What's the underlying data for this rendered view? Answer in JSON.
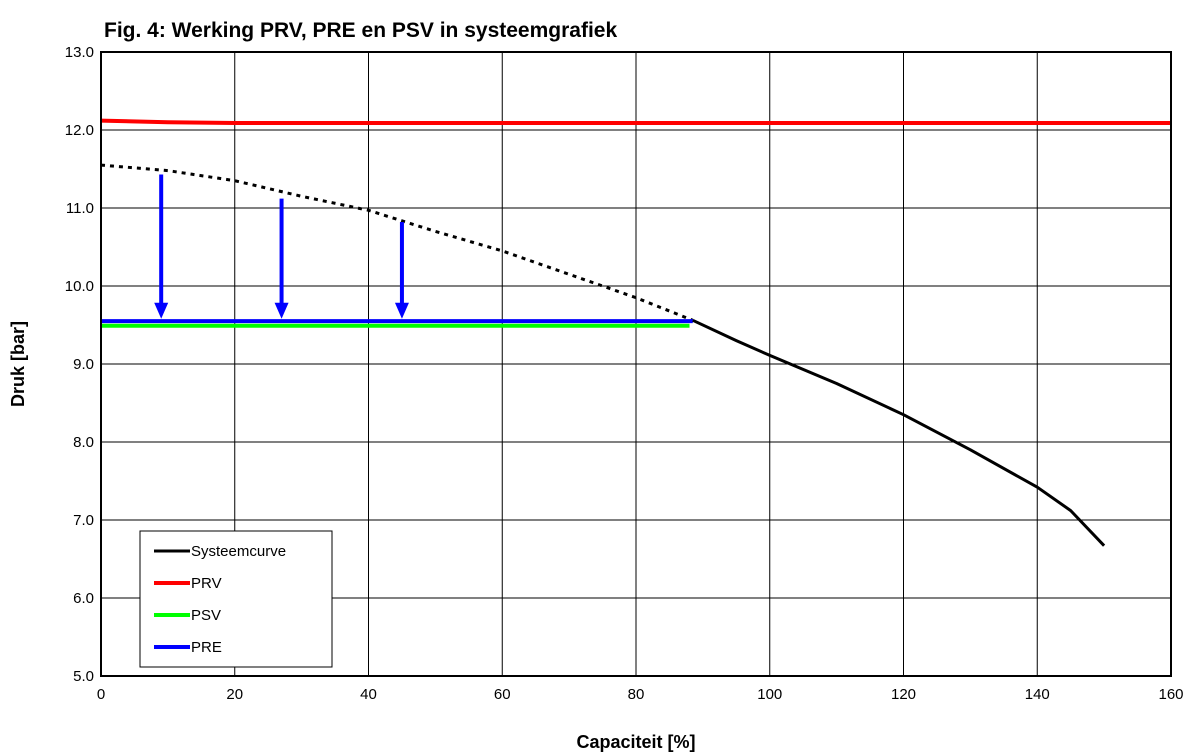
{
  "chart_data": {
    "type": "line",
    "title": "Fig. 4: Werking PRV, PRE en PSV in systeemgrafiek",
    "xlabel": "Capaciteit [%]",
    "ylabel": "Druk [bar]",
    "xlim": [
      0,
      160
    ],
    "ylim": [
      5.0,
      13.0
    ],
    "xticks": [
      0,
      20,
      40,
      60,
      80,
      100,
      120,
      140,
      160
    ],
    "yticks": [
      "5.0",
      "6.0",
      "7.0",
      "8.0",
      "9.0",
      "10.0",
      "11.0",
      "12.0",
      "13.0"
    ],
    "grid": true,
    "legend_position": "bottom-left",
    "series": [
      {
        "name": "Systeemcurve",
        "color": "#000000",
        "points": [
          [
            88.5,
            9.56
          ],
          [
            95,
            9.3
          ],
          [
            100,
            9.11
          ],
          [
            110,
            8.75
          ],
          [
            120,
            8.35
          ],
          [
            130,
            7.9
          ],
          [
            140,
            7.42
          ],
          [
            145,
            7.12
          ],
          [
            150,
            6.67
          ]
        ]
      },
      {
        "name": "PRV",
        "color": "#ff0000",
        "points": [
          [
            0,
            12.12
          ],
          [
            10,
            12.1
          ],
          [
            20,
            12.09
          ],
          [
            40,
            12.09
          ],
          [
            80,
            12.09
          ],
          [
            120,
            12.09
          ],
          [
            160,
            12.09
          ]
        ]
      },
      {
        "name": "PSV",
        "color": "#00ff00",
        "points": [
          [
            0,
            9.49
          ],
          [
            88,
            9.49
          ]
        ]
      },
      {
        "name": "PRE",
        "color": "#0000ff",
        "points": [
          [
            0,
            9.55
          ],
          [
            88.5,
            9.55
          ]
        ]
      }
    ],
    "dotted_curve": {
      "color": "#000000",
      "points": [
        [
          0,
          11.55
        ],
        [
          10,
          11.48
        ],
        [
          20,
          11.35
        ],
        [
          30,
          11.15
        ],
        [
          40,
          10.97
        ],
        [
          50,
          10.7
        ],
        [
          60,
          10.45
        ],
        [
          70,
          10.15
        ],
        [
          80,
          9.85
        ],
        [
          88.5,
          9.56
        ]
      ]
    },
    "arrows": [
      {
        "x": 9,
        "y_from": 11.43,
        "y_to": 9.58
      },
      {
        "x": 27,
        "y_from": 11.12,
        "y_to": 9.58
      },
      {
        "x": 45,
        "y_from": 10.82,
        "y_to": 9.58
      }
    ],
    "arrow_color": "#0000ff"
  }
}
